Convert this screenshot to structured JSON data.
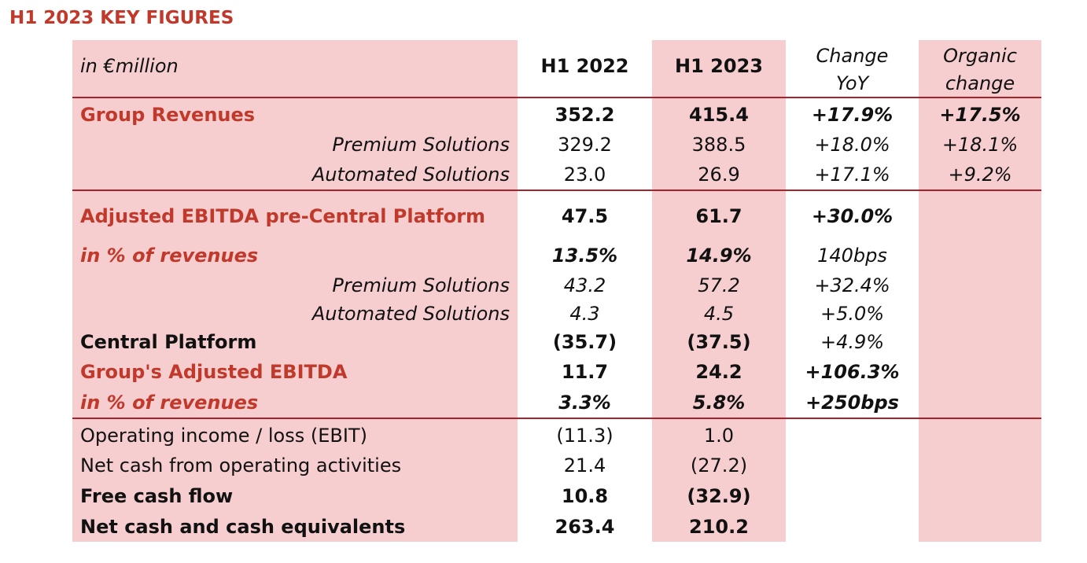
{
  "title": "H1 2023 KEY FIGURES",
  "colors": {
    "accent_red": "#C0392B",
    "band_pink": "#F6CECF",
    "rule_red": "#A8232A",
    "text": "#111111"
  },
  "header": {
    "unit": "in €million",
    "col1": "H1 2022",
    "col2": "H1 2023",
    "col3_line1": "Change",
    "col3_line2": "YoY",
    "col4_line1": "Organic",
    "col4_line2": "change"
  },
  "rows": [
    {
      "label": "Group Revenues",
      "h1_2022": "352.2",
      "h1_2023": "415.4",
      "change": "+17.9%",
      "organic": "+17.5%"
    },
    {
      "label": "Premium Solutions",
      "h1_2022": "329.2",
      "h1_2023": "388.5",
      "change": "+18.0%",
      "organic": "+18.1%"
    },
    {
      "label": "Automated Solutions",
      "h1_2022": "23.0",
      "h1_2023": "26.9",
      "change": "+17.1%",
      "organic": "+9.2%"
    },
    {
      "label": "Adjusted EBITDA pre-Central Platform",
      "h1_2022": "47.5",
      "h1_2023": "61.7",
      "change": "+30.0%",
      "organic": ""
    },
    {
      "label": "in % of revenues",
      "h1_2022": "13.5%",
      "h1_2023": "14.9%",
      "change": "140bps",
      "organic": ""
    },
    {
      "label": "Premium Solutions",
      "h1_2022": "43.2",
      "h1_2023": "57.2",
      "change": "+32.4%",
      "organic": ""
    },
    {
      "label": "Automated Solutions",
      "h1_2022": "4.3",
      "h1_2023": "4.5",
      "change": "+5.0%",
      "organic": ""
    },
    {
      "label": "Central Platform",
      "h1_2022": "(35.7)",
      "h1_2023": "(37.5)",
      "change": "+4.9%",
      "organic": ""
    },
    {
      "label": "Group's Adjusted EBITDA",
      "h1_2022": "11.7",
      "h1_2023": "24.2",
      "change": "+106.3%",
      "organic": ""
    },
    {
      "label": "in % of revenues",
      "h1_2022": "3.3%",
      "h1_2023": "5.8%",
      "change": "+250bps",
      "organic": ""
    },
    {
      "label": "Operating income / loss (EBIT)",
      "h1_2022": "(11.3)",
      "h1_2023": "1.0",
      "change": "",
      "organic": ""
    },
    {
      "label": "Net cash from operating activities",
      "h1_2022": "21.4",
      "h1_2023": "(27.2)",
      "change": "",
      "organic": ""
    },
    {
      "label": "Free cash flow",
      "h1_2022": "10.8",
      "h1_2023": "(32.9)",
      "change": "",
      "organic": ""
    },
    {
      "label": "Net cash and cash equivalents",
      "h1_2022": "263.4",
      "h1_2023": "210.2",
      "change": "",
      "organic": ""
    }
  ]
}
